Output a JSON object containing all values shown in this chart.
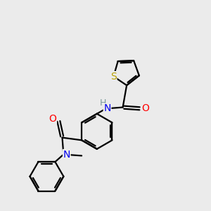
{
  "background_color": "#ebebeb",
  "atom_colors": {
    "S": "#b8a000",
    "N": "#0000ee",
    "O": "#ff0000",
    "C": "#000000",
    "H": "#7a9a9a"
  },
  "bond_color": "#000000",
  "bond_width": 1.6,
  "font_size_heavy": 10,
  "font_size_H": 9
}
